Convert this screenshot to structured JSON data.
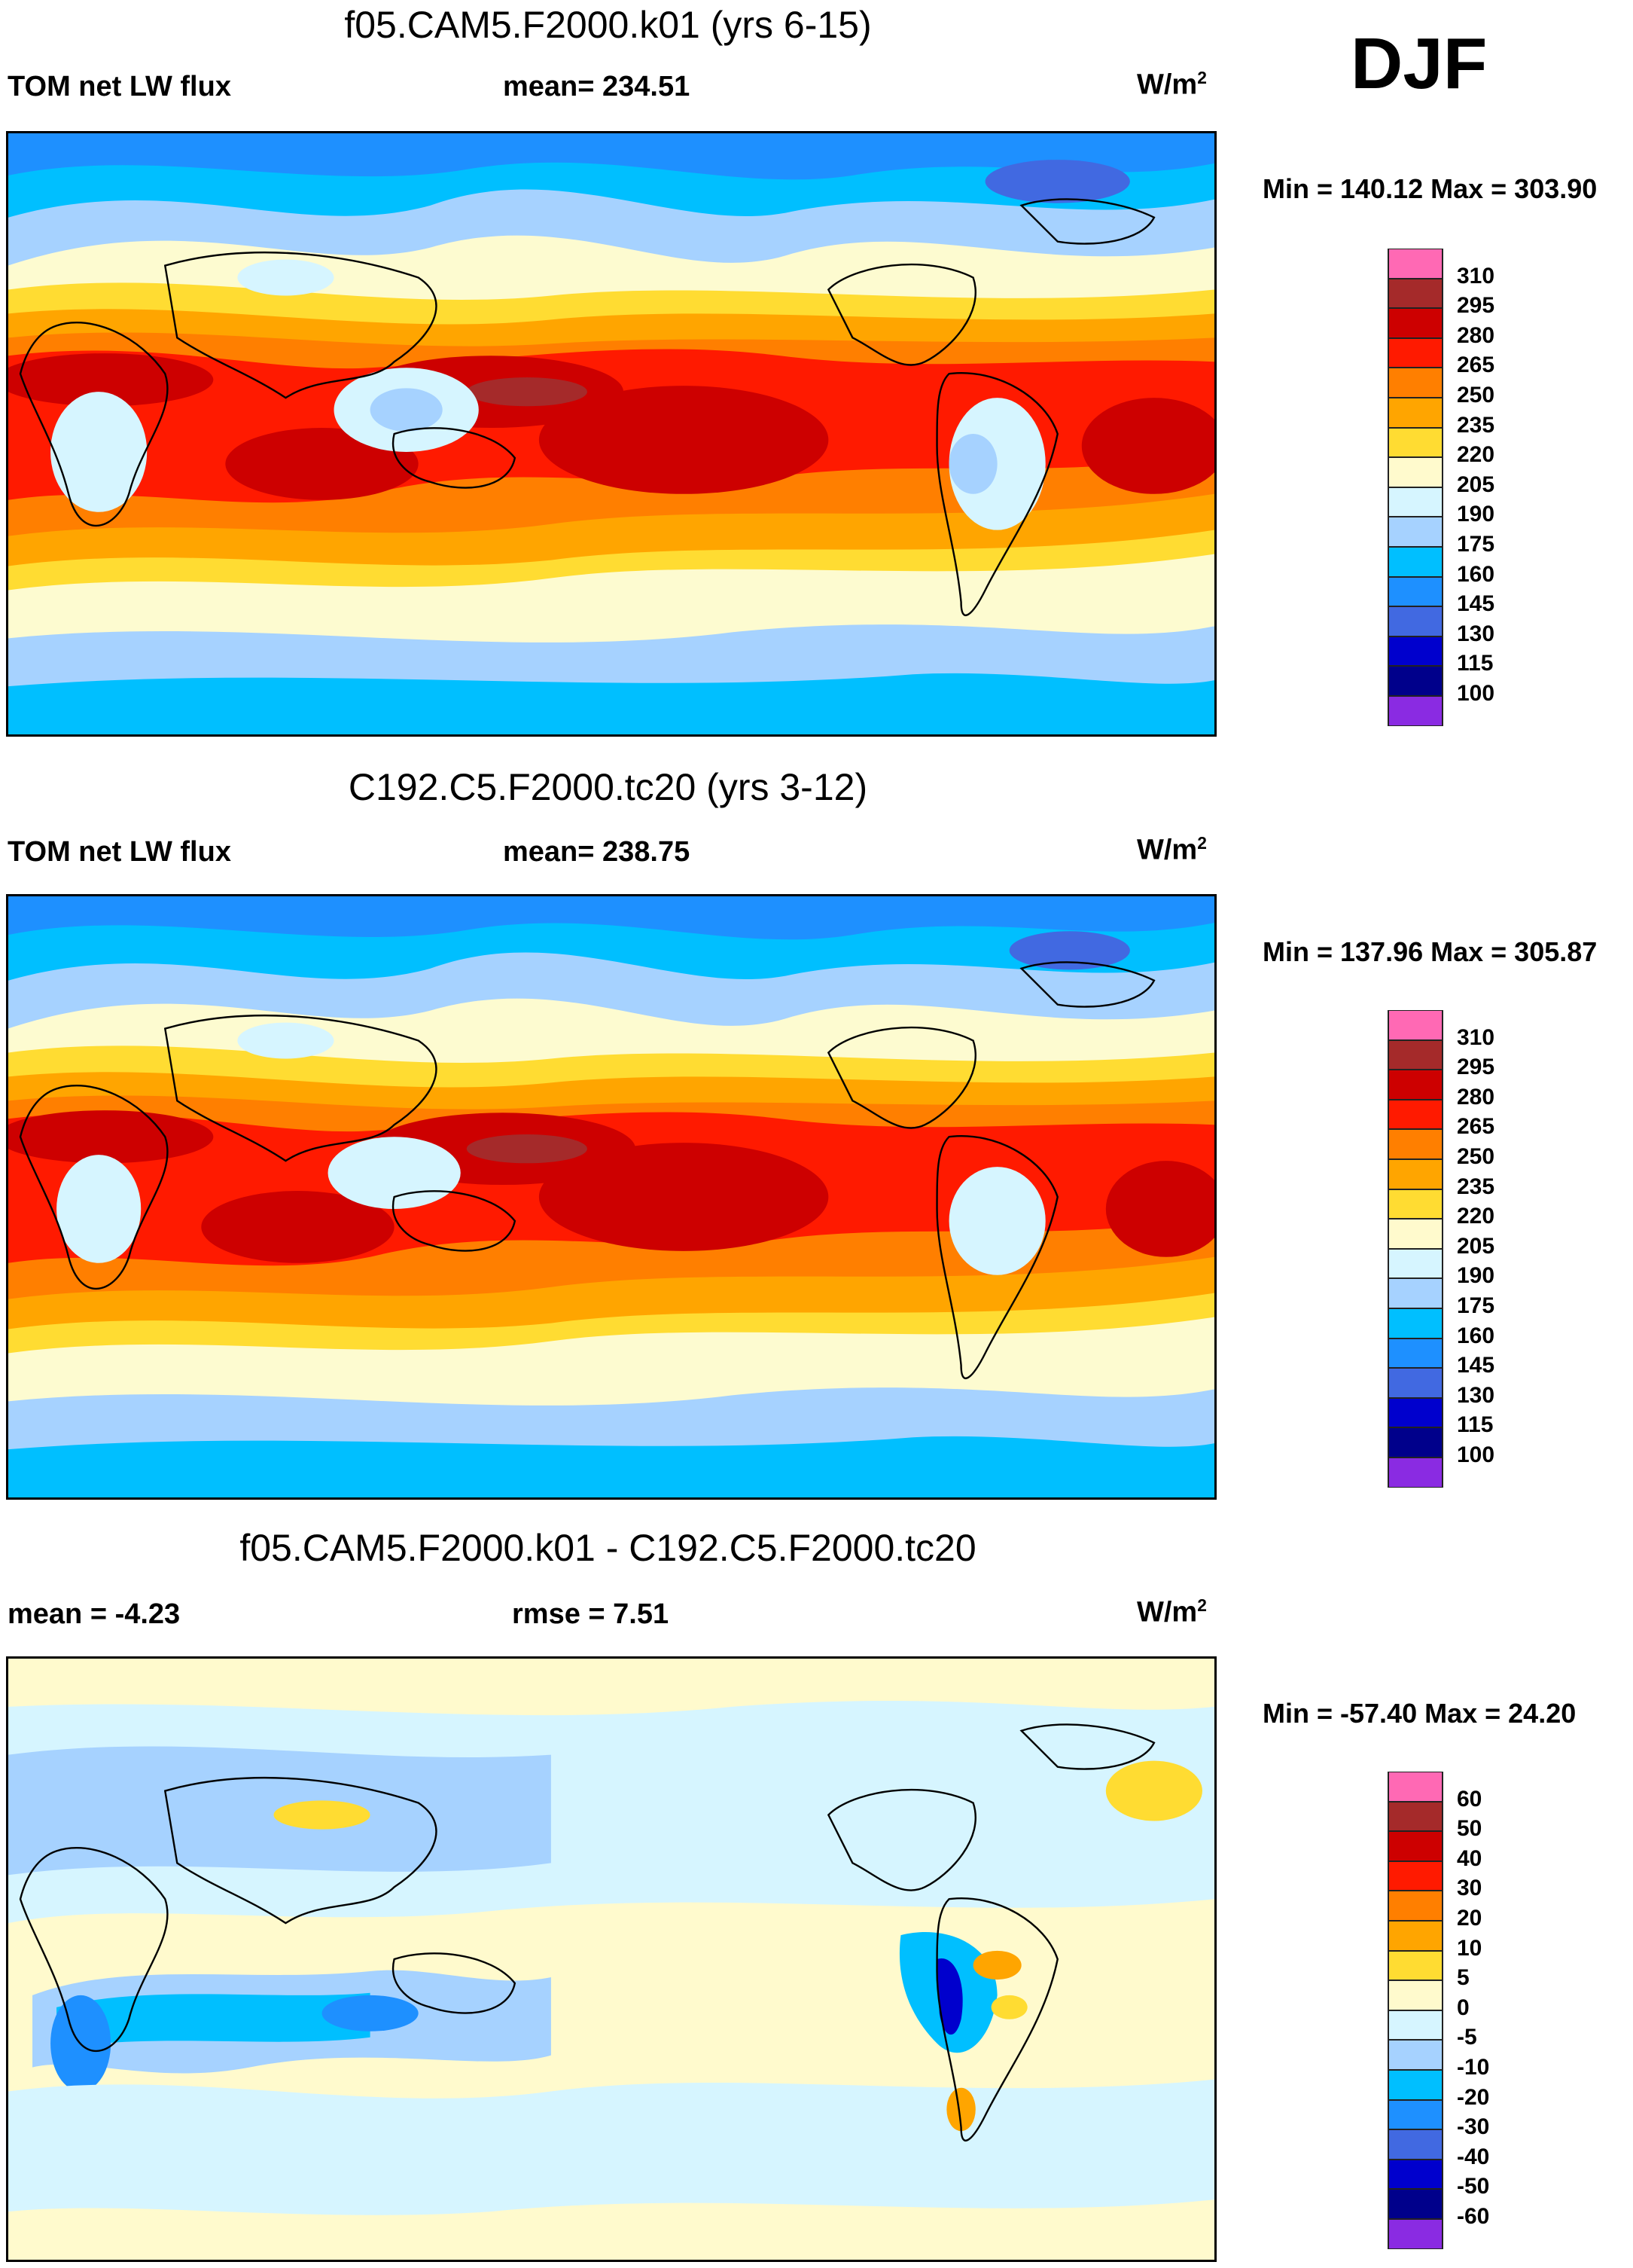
{
  "season": "DJF",
  "panels": [
    {
      "title": "f05.CAM5.F2000.k01 (yrs 6-15)",
      "left_label": "TOM net LW flux",
      "center_label": "mean= 234.51",
      "units": "W/m",
      "units_sup": "2",
      "minmax": "Min = 140.12 Max = 303.90"
    },
    {
      "title": "C192.C5.F2000.tc20 (yrs 3-12)",
      "left_label": "TOM net LW flux",
      "center_label": "mean= 238.75",
      "units": "W/m",
      "units_sup": "2",
      "minmax": "Min = 137.96 Max = 305.87"
    },
    {
      "title": "f05.CAM5.F2000.k01 - C192.C5.F2000.tc20",
      "left_label": "mean =  -4.23",
      "center_label": "rmse =   7.51",
      "units": "W/m",
      "units_sup": "2",
      "minmax": "Min = -57.40 Max =  24.20"
    }
  ],
  "colorbars": {
    "absolute": {
      "labels": [
        "310",
        "295",
        "280",
        "265",
        "250",
        "235",
        "220",
        "205",
        "190",
        "175",
        "160",
        "145",
        "130",
        "115",
        "100"
      ],
      "colors": [
        "#ff69b4",
        "#a52a2a",
        "#cd0000",
        "#ff1a00",
        "#ff7f00",
        "#ffa500",
        "#ffdc32",
        "#fffacd",
        "#d6f5ff",
        "#a6d2ff",
        "#00bfff",
        "#1e90ff",
        "#4169e1",
        "#0000cd",
        "#00008b",
        "#8a2be2"
      ]
    },
    "difference": {
      "labels": [
        "60",
        "50",
        "40",
        "30",
        "20",
        "10",
        "5",
        "0",
        "-5",
        "-10",
        "-20",
        "-30",
        "-40",
        "-50",
        "-60"
      ],
      "colors": [
        "#ff69b4",
        "#a52a2a",
        "#cd0000",
        "#ff1a00",
        "#ff7f00",
        "#ffa500",
        "#ffdc32",
        "#fffacd",
        "#d6f5ff",
        "#a6d2ff",
        "#00bfff",
        "#1e90ff",
        "#4169e1",
        "#0000cd",
        "#00008b",
        "#8a2be2"
      ]
    }
  }
}
